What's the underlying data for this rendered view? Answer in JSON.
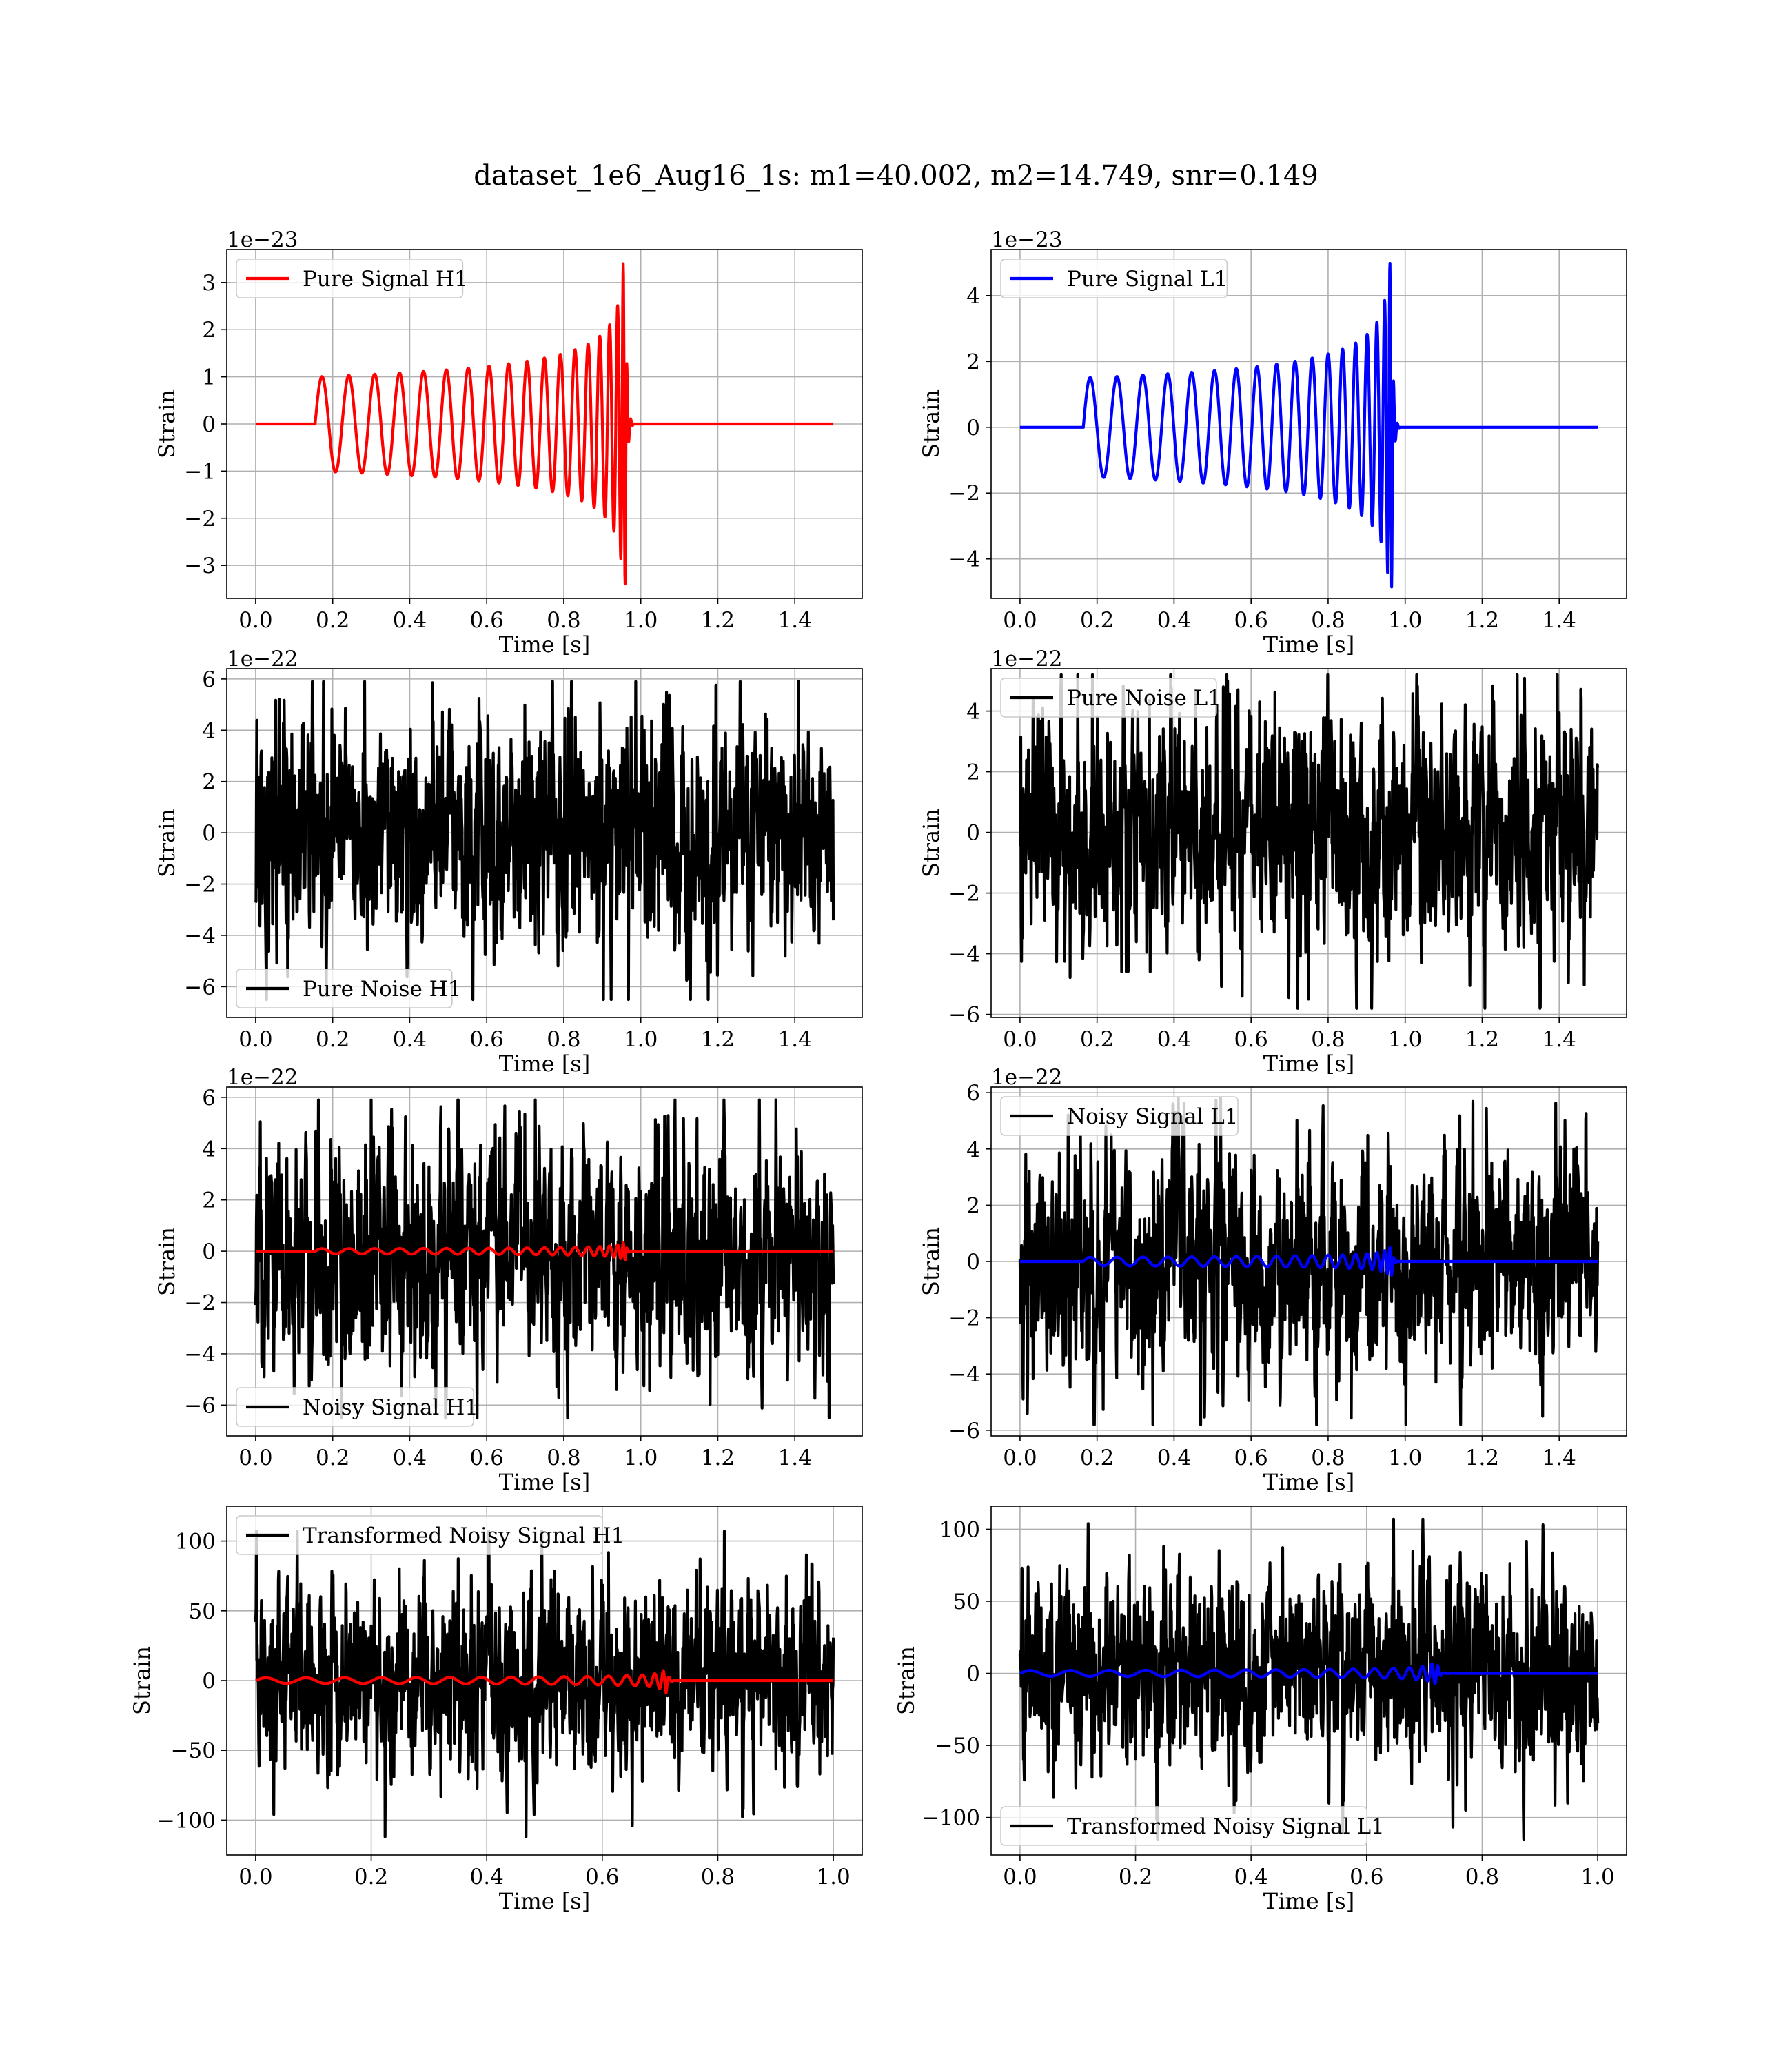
{
  "figure": {
    "title": "dataset_1e6_Aug16_1s: m1=40.002, m2=14.749, snr=0.149"
  },
  "chart_data": [
    {
      "id": "p0",
      "type": "line",
      "legend": {
        "labels": [
          "Pure Signal H1"
        ],
        "location": "upper left"
      },
      "xlabel": "Time [s]",
      "ylabel": "Strain",
      "offset_label": "1e−23",
      "xlim": [
        -0.075,
        1.575
      ],
      "ylim": [
        -3.7,
        3.7
      ],
      "xticks": [
        0.0,
        0.2,
        0.4,
        0.6,
        0.8,
        1.0,
        1.2,
        1.4
      ],
      "xtick_labels": [
        "0.0",
        "0.2",
        "0.4",
        "0.6",
        "0.8",
        "1.0",
        "1.2",
        "1.4"
      ],
      "yticks": [
        -3,
        -2,
        -1,
        0,
        1,
        2,
        3
      ],
      "ytick_labels": [
        "−3",
        "−2",
        "−1",
        "0",
        "1",
        "2",
        "3"
      ],
      "grid": true,
      "series": [
        {
          "name": "Pure Signal H1",
          "color": "#ff0000",
          "role": "chirp",
          "t_start": 0.0,
          "t_end": 1.5,
          "t_merge": 0.96,
          "t_chirp_start": 0.155,
          "base_amplitude": 1.0,
          "peak_amplitude": 3.4,
          "noise_amplitude": 0
        }
      ]
    },
    {
      "id": "p1",
      "type": "line",
      "legend": {
        "labels": [
          "Pure Signal L1"
        ],
        "location": "upper left"
      },
      "xlabel": "Time [s]",
      "ylabel": "Strain",
      "offset_label": "1e−23",
      "xlim": [
        -0.075,
        1.575
      ],
      "ylim": [
        -5.2,
        5.4
      ],
      "xticks": [
        0.0,
        0.2,
        0.4,
        0.6,
        0.8,
        1.0,
        1.2,
        1.4
      ],
      "xtick_labels": [
        "0.0",
        "0.2",
        "0.4",
        "0.6",
        "0.8",
        "1.0",
        "1.2",
        "1.4"
      ],
      "yticks": [
        -4,
        -2,
        0,
        2,
        4
      ],
      "ytick_labels": [
        "−4",
        "−2",
        "0",
        "2",
        "4"
      ],
      "grid": true,
      "series": [
        {
          "name": "Pure Signal L1",
          "color": "#0000ff",
          "role": "chirp",
          "t_start": 0.0,
          "t_end": 1.5,
          "t_merge": 0.965,
          "t_chirp_start": 0.165,
          "base_amplitude": 1.5,
          "peak_amplitude": 5.0,
          "noise_amplitude": 0
        }
      ]
    },
    {
      "id": "p2",
      "type": "line",
      "legend": {
        "labels": [
          "Pure Noise H1"
        ],
        "location": "lower left"
      },
      "xlabel": "Time [s]",
      "ylabel": "Strain",
      "offset_label": "1e−22",
      "xlim": [
        -0.075,
        1.575
      ],
      "ylim": [
        -7.2,
        6.4
      ],
      "xticks": [
        0.0,
        0.2,
        0.4,
        0.6,
        0.8,
        1.0,
        1.2,
        1.4
      ],
      "xtick_labels": [
        "0.0",
        "0.2",
        "0.4",
        "0.6",
        "0.8",
        "1.0",
        "1.2",
        "1.4"
      ],
      "yticks": [
        -6,
        -4,
        -2,
        0,
        2,
        4,
        6
      ],
      "ytick_labels": [
        "−6",
        "−4",
        "−2",
        "0",
        "2",
        "4",
        "6"
      ],
      "grid": true,
      "series": [
        {
          "name": "Pure Noise H1",
          "color": "#000000",
          "role": "noise",
          "t_start": 0.0,
          "t_end": 1.5,
          "noise_amplitude": 2.0,
          "noise_min": -6.5,
          "noise_max": 5.9
        }
      ]
    },
    {
      "id": "p3",
      "type": "line",
      "legend": {
        "labels": [
          "Pure Noise L1"
        ],
        "location": "upper left"
      },
      "xlabel": "Time [s]",
      "ylabel": "Strain",
      "offset_label": "1e−22",
      "xlim": [
        -0.075,
        1.575
      ],
      "ylim": [
        -6.1,
        5.4
      ],
      "xticks": [
        0.0,
        0.2,
        0.4,
        0.6,
        0.8,
        1.0,
        1.2,
        1.4
      ],
      "xtick_labels": [
        "0.0",
        "0.2",
        "0.4",
        "0.6",
        "0.8",
        "1.0",
        "1.2",
        "1.4"
      ],
      "yticks": [
        -6,
        -4,
        -2,
        0,
        2,
        4
      ],
      "ytick_labels": [
        "−6",
        "−4",
        "−2",
        "0",
        "2",
        "4"
      ],
      "grid": true,
      "series": [
        {
          "name": "Pure Noise L1",
          "color": "#000000",
          "role": "noise",
          "t_start": 0.0,
          "t_end": 1.5,
          "noise_amplitude": 1.8,
          "noise_min": -5.8,
          "noise_max": 5.2
        }
      ]
    },
    {
      "id": "p4",
      "type": "line",
      "legend": {
        "labels": [
          "Noisy Signal H1"
        ],
        "location": "lower left"
      },
      "xlabel": "Time [s]",
      "ylabel": "Strain",
      "offset_label": "1e−22",
      "xlim": [
        -0.075,
        1.575
      ],
      "ylim": [
        -7.2,
        6.4
      ],
      "xticks": [
        0.0,
        0.2,
        0.4,
        0.6,
        0.8,
        1.0,
        1.2,
        1.4
      ],
      "xtick_labels": [
        "0.0",
        "0.2",
        "0.4",
        "0.6",
        "0.8",
        "1.0",
        "1.2",
        "1.4"
      ],
      "yticks": [
        -6,
        -4,
        -2,
        0,
        2,
        4,
        6
      ],
      "ytick_labels": [
        "−6",
        "−4",
        "−2",
        "0",
        "2",
        "4",
        "6"
      ],
      "grid": true,
      "series": [
        {
          "name": "Noisy Signal H1",
          "color": "#000000",
          "role": "noise",
          "t_start": 0.0,
          "t_end": 1.5,
          "noise_amplitude": 2.0,
          "noise_min": -6.5,
          "noise_max": 5.9
        },
        {
          "color": "#ff0000",
          "role": "chirp",
          "t_start": 0.0,
          "t_end": 1.5,
          "t_merge": 0.96,
          "t_chirp_start": 0.155,
          "base_amplitude": 0.1,
          "peak_amplitude": 0.34
        }
      ]
    },
    {
      "id": "p5",
      "type": "line",
      "legend": {
        "labels": [
          "Noisy Signal L1"
        ],
        "location": "upper left"
      },
      "xlabel": "Time [s]",
      "ylabel": "Strain",
      "offset_label": "1e−22",
      "xlim": [
        -0.075,
        1.575
      ],
      "ylim": [
        -6.2,
        6.2
      ],
      "xticks": [
        0.0,
        0.2,
        0.4,
        0.6,
        0.8,
        1.0,
        1.2,
        1.4
      ],
      "xtick_labels": [
        "0.0",
        "0.2",
        "0.4",
        "0.6",
        "0.8",
        "1.0",
        "1.2",
        "1.4"
      ],
      "yticks": [
        -6,
        -4,
        -2,
        0,
        2,
        4,
        6
      ],
      "ytick_labels": [
        "−6",
        "−4",
        "−2",
        "0",
        "2",
        "4",
        "6"
      ],
      "grid": true,
      "series": [
        {
          "name": "Noisy Signal L1",
          "color": "#000000",
          "role": "noise",
          "t_start": 0.0,
          "t_end": 1.5,
          "noise_amplitude": 1.8,
          "noise_min": -5.8,
          "noise_max": 5.8
        },
        {
          "color": "#0000ff",
          "role": "chirp",
          "t_start": 0.0,
          "t_end": 1.5,
          "t_merge": 0.965,
          "t_chirp_start": 0.165,
          "base_amplitude": 0.15,
          "peak_amplitude": 0.5
        }
      ]
    },
    {
      "id": "p6",
      "type": "line",
      "legend": {
        "labels": [
          "Transformed Noisy Signal H1"
        ],
        "location": "upper left"
      },
      "xlabel": "Time [s]",
      "ylabel": "Strain",
      "offset_label": "",
      "xlim": [
        -0.05,
        1.05
      ],
      "ylim": [
        -125,
        125
      ],
      "xticks": [
        0.0,
        0.2,
        0.4,
        0.6,
        0.8,
        1.0
      ],
      "xtick_labels": [
        "0.0",
        "0.2",
        "0.4",
        "0.6",
        "0.8",
        "1.0"
      ],
      "yticks": [
        -100,
        -50,
        0,
        50,
        100
      ],
      "ytick_labels": [
        "−100",
        "−50",
        "0",
        "50",
        "100"
      ],
      "grid": true,
      "series": [
        {
          "name": "Transformed Noisy Signal H1",
          "color": "#000000",
          "role": "noise",
          "t_start": 0.0,
          "t_end": 1.0,
          "noise_amplitude": 30,
          "noise_min": -112,
          "noise_max": 107
        },
        {
          "color": "#ff0000",
          "role": "chirp",
          "t_start": 0.0,
          "t_end": 1.0,
          "t_merge": 0.71,
          "t_chirp_start": 0.0,
          "base_amplitude": 2,
          "peak_amplitude": 10
        }
      ]
    },
    {
      "id": "p7",
      "type": "line",
      "legend": {
        "labels": [
          "Transformed Noisy Signal L1"
        ],
        "location": "lower left"
      },
      "xlabel": "Time [s]",
      "ylabel": "Strain",
      "offset_label": "",
      "xlim": [
        -0.05,
        1.05
      ],
      "ylim": [
        -126,
        116
      ],
      "xticks": [
        0.0,
        0.2,
        0.4,
        0.6,
        0.8,
        1.0
      ],
      "xtick_labels": [
        "0.0",
        "0.2",
        "0.4",
        "0.6",
        "0.8",
        "1.0"
      ],
      "yticks": [
        -100,
        -50,
        0,
        50,
        100
      ],
      "ytick_labels": [
        "−100",
        "−50",
        "0",
        "50",
        "100"
      ],
      "grid": true,
      "series": [
        {
          "name": "Transformed Noisy Signal L1",
          "color": "#000000",
          "role": "noise",
          "t_start": 0.0,
          "t_end": 1.0,
          "noise_amplitude": 30,
          "noise_min": -115,
          "noise_max": 107
        },
        {
          "color": "#0000ff",
          "role": "chirp",
          "t_start": 0.0,
          "t_end": 1.0,
          "t_merge": 0.72,
          "t_chirp_start": 0.0,
          "base_amplitude": 2,
          "peak_amplitude": 12
        }
      ]
    }
  ]
}
